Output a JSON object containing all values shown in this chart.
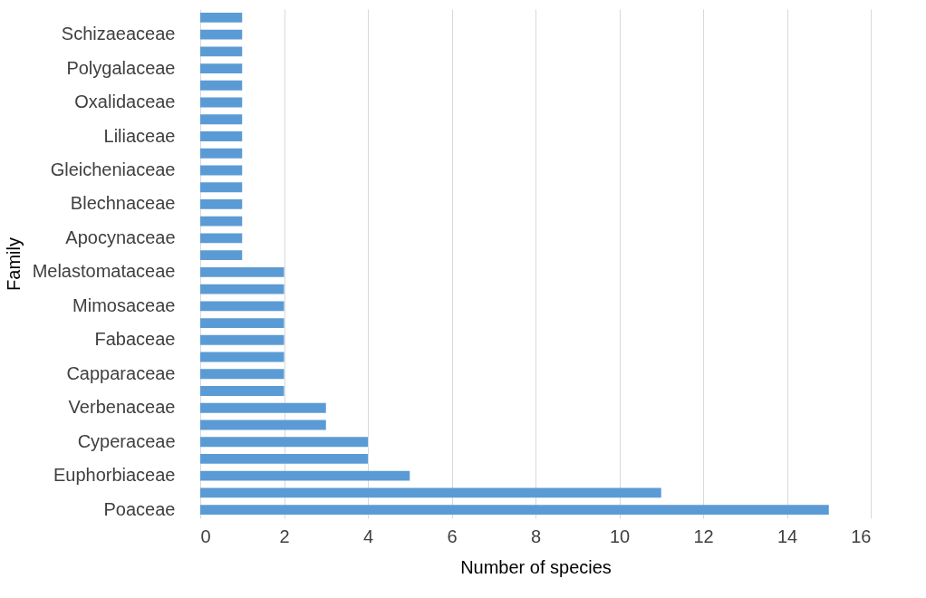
{
  "chart_data": {
    "type": "bar",
    "orientation": "horizontal",
    "xlabel": "Number of species",
    "ylabel": "Family",
    "categories": [
      null,
      "Schizaeaceae",
      null,
      "Polygalaceae",
      null,
      "Oxalidaceae",
      null,
      "Liliaceae",
      null,
      "Gleicheniaceae",
      null,
      "Blechnaceae",
      null,
      "Apocynaceae",
      null,
      "Melastomataceae",
      null,
      "Mimosaceae",
      null,
      "Fabaceae",
      null,
      "Capparaceae",
      null,
      "Verbenaceae",
      null,
      "Cyperaceae",
      null,
      "Euphorbiaceae",
      null,
      "Poaceae"
    ],
    "values": [
      1,
      1,
      1,
      1,
      1,
      1,
      1,
      1,
      1,
      1,
      1,
      1,
      1,
      1,
      1,
      2,
      2,
      2,
      2,
      2,
      2,
      2,
      2,
      3,
      3,
      4,
      4,
      5,
      11,
      15
    ],
    "color": "#5b9bd5",
    "xlim": [
      0,
      16
    ],
    "xticks": [
      0,
      2,
      4,
      6,
      8,
      10,
      12,
      14,
      16
    ],
    "grid": "x"
  }
}
